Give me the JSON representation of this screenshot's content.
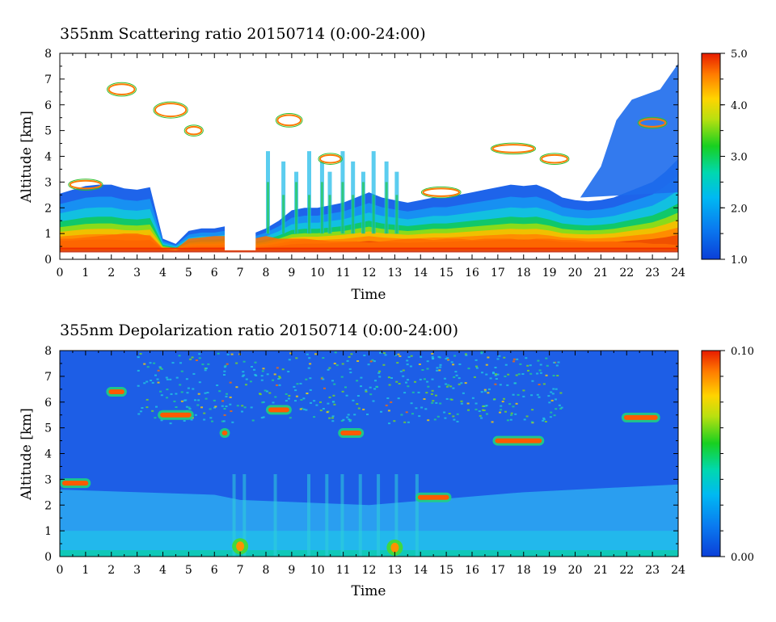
{
  "chart_data": [
    {
      "type": "heatmap",
      "title": "355nm Scattering ratio  20150714 (0:00-24:00)",
      "xlabel": "Time",
      "ylabel": "Altitude [km]",
      "xlim": [
        0,
        24
      ],
      "ylim": [
        0,
        8
      ],
      "x_ticks": [
        "0",
        "1",
        "2",
        "3",
        "4",
        "5",
        "6",
        "7",
        "8",
        "9",
        "10",
        "11",
        "12",
        "13",
        "14",
        "15",
        "16",
        "17",
        "18",
        "19",
        "20",
        "21",
        "22",
        "23",
        "24"
      ],
      "y_ticks": [
        "0",
        "1",
        "2",
        "3",
        "4",
        "5",
        "6",
        "7",
        "8"
      ],
      "colorbar": {
        "range": [
          1.0,
          5.0
        ],
        "ticks": [
          "1.0",
          "2.0",
          "3.0",
          "4.0",
          "5.0"
        ]
      },
      "boundary_layer_top_km": [
        2.55,
        2.7,
        2.85,
        2.9,
        2.9,
        2.75,
        2.7,
        2.8,
        0.8,
        0.6,
        1.1,
        1.2,
        1.2,
        1.3,
        1.0,
        1.0,
        1.2,
        1.5,
        1.9,
        2.0,
        2.0,
        2.1,
        2.2,
        2.4,
        2.6,
        2.4,
        2.3,
        2.2,
        2.3,
        2.4,
        2.4,
        2.5,
        2.6,
        2.7,
        2.8,
        2.9,
        2.85,
        2.9,
        2.7,
        2.4,
        2.3,
        2.25,
        2.3,
        2.4,
        2.6,
        2.8,
        3.0,
        3.4,
        3.9
      ],
      "scattering_peak_km": [
        0.8,
        0.8,
        0.85,
        0.9,
        0.95,
        1.0,
        1.0,
        0.9,
        0.4,
        0.4,
        0.8,
        0.85,
        0.9,
        0.9,
        0.8,
        0.8,
        0.9,
        0.8,
        0.8,
        0.8,
        0.75,
        0.7,
        0.7,
        0.7,
        0.65,
        0.7,
        0.75,
        0.8,
        0.8,
        0.75,
        0.8,
        0.8,
        0.75,
        0.8,
        0.8,
        0.8,
        0.75,
        0.8,
        0.8,
        0.75,
        0.75,
        0.7,
        0.7,
        0.7,
        0.65,
        0.65,
        0.6,
        0.6,
        0.55
      ]
    },
    {
      "type": "heatmap",
      "title": "355nm Depolarization ratio  20150714 (0:00-24:00)",
      "xlabel": "Time",
      "ylabel": "Altitude [km]",
      "xlim": [
        0,
        24
      ],
      "ylim": [
        0,
        8
      ],
      "x_ticks": [
        "0",
        "1",
        "2",
        "3",
        "4",
        "5",
        "6",
        "7",
        "8",
        "9",
        "10",
        "11",
        "12",
        "13",
        "14",
        "15",
        "16",
        "17",
        "18",
        "19",
        "20",
        "21",
        "22",
        "23",
        "24"
      ],
      "y_ticks": [
        "0",
        "1",
        "2",
        "3",
        "4",
        "5",
        "6",
        "7",
        "8"
      ],
      "colorbar": {
        "range": [
          0.0,
          0.1
        ],
        "ticks": [
          "0.00",
          "0.10"
        ]
      },
      "cloud_layers": [
        {
          "t0": 0.0,
          "t1": 1.2,
          "alt": 2.85
        },
        {
          "t0": 1.8,
          "t1": 2.6,
          "alt": 6.4
        },
        {
          "t0": 3.8,
          "t1": 5.2,
          "alt": 5.5
        },
        {
          "t0": 6.2,
          "t1": 6.6,
          "alt": 4.8
        },
        {
          "t0": 8.0,
          "t1": 9.0,
          "alt": 5.7
        },
        {
          "t0": 10.8,
          "t1": 11.8,
          "alt": 4.8
        },
        {
          "t0": 13.8,
          "t1": 15.2,
          "alt": 2.3
        },
        {
          "t0": 16.8,
          "t1": 18.8,
          "alt": 4.5
        },
        {
          "t0": 21.8,
          "t1": 23.3,
          "alt": 5.4
        }
      ]
    }
  ]
}
